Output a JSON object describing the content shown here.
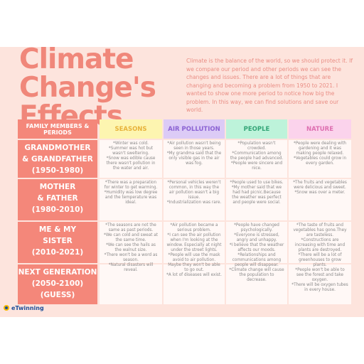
{
  "header": {
    "title": [
      "Climate",
      "Change's",
      "Effects"
    ],
    "intro": "Climate is the balance of the world, so we should protect it. If we compare our period and other periods we can see the changes and issues.  There are a lot of things that are changing and becoming a problem from 1950 to 2021. I wanted to show one more period to notice how big the problem. In this way, we can find solutions and save our world."
  },
  "table": {
    "header": [
      "FAMILY MEMBERS & PERIODS",
      "SEASONS",
      "AIR POLLUTION",
      "PEOPLE",
      "NATURE"
    ],
    "rows": [
      {
        "label": [
          "GRANDMOTHER",
          "& GRANDFATHER",
          "(1950-1980)"
        ],
        "cells": [
          [
            "*Winter was cold.",
            "*Summer was hot but wasn't sweltering.",
            "*Snow was edible cause there wasn't pollution in the water and air."
          ],
          [
            "*Air pollution wasn't being seen in those years.",
            "*My grandma said that the only visible gas in the air was fog."
          ],
          [
            "*Population wasn't crowded.",
            "*Communication among the people had advanced.",
            "*People were sincere and nice."
          ],
          [
            "*People were dealing with gardening and it was making people relaxed.",
            "*Vegetables could grow in every garden."
          ]
        ]
      },
      {
        "label": [
          "MOTHER",
          "& FATHER",
          "(1980-2010)"
        ],
        "cells": [
          [
            "*There was a preparation for winter to get warming.",
            "*Humidity was low degree and the temperature was ideal."
          ],
          [
            "*Personal vehicles weren't common, in this way the air pollution wasn't a big issue.",
            "*Industrialization was rare."
          ],
          [
            "*People used to use bikes.",
            "*My mother said that we had had picnic.Because the weather was perfect and people were social."
          ],
          [
            "*The fruits and vegetables were delicious and sweet.",
            "*Snow was over a meter."
          ]
        ]
      },
      {
        "label": [
          "ME & MY",
          "SISTER",
          "(2010-2021)"
        ],
        "cells": [
          [
            "*The seasons are not the same as past periods.",
            "*We can cold and sweat at the same time.",
            "*We can see the hails as the walnut size.",
            "*There won't be a word as season.",
            "*Natural disasters will reveal."
          ],
          [
            "*Air pollution became a serious problem.",
            "*I can see the air pollution when I'm looking at the window. Especially at night under the street lights.",
            "*People will use the mask avoid to air pollution. Maybe they won't be able to go out.",
            "*A lot of diseases will exist."
          ],
          [
            "*People have changed psychologically.",
            "*Everyone is stressed, angry and unhappy.",
            "*I believe that the weather affects our moods.",
            "*Relationships and communications among people will disappear.",
            "*Climate change will cause the population to decrease."
          ],
          [
            "*The taste of fruits and vegetables has gone.They are tasteless.",
            "*Constructions are increasing with time and plants are destroyed.",
            "*There will be a lot of greenhouses to grow plants.",
            "*People won't be able to see the forest and take oxygen.",
            "*There will be oxygen tubes in every house."
          ]
        ]
      },
      {
        "label": [
          "NEXT GENERATION",
          "(2050-2100)",
          "(GUESS)"
        ],
        "cells": []
      }
    ]
  },
  "footer": {
    "logo": "eTwinning"
  }
}
